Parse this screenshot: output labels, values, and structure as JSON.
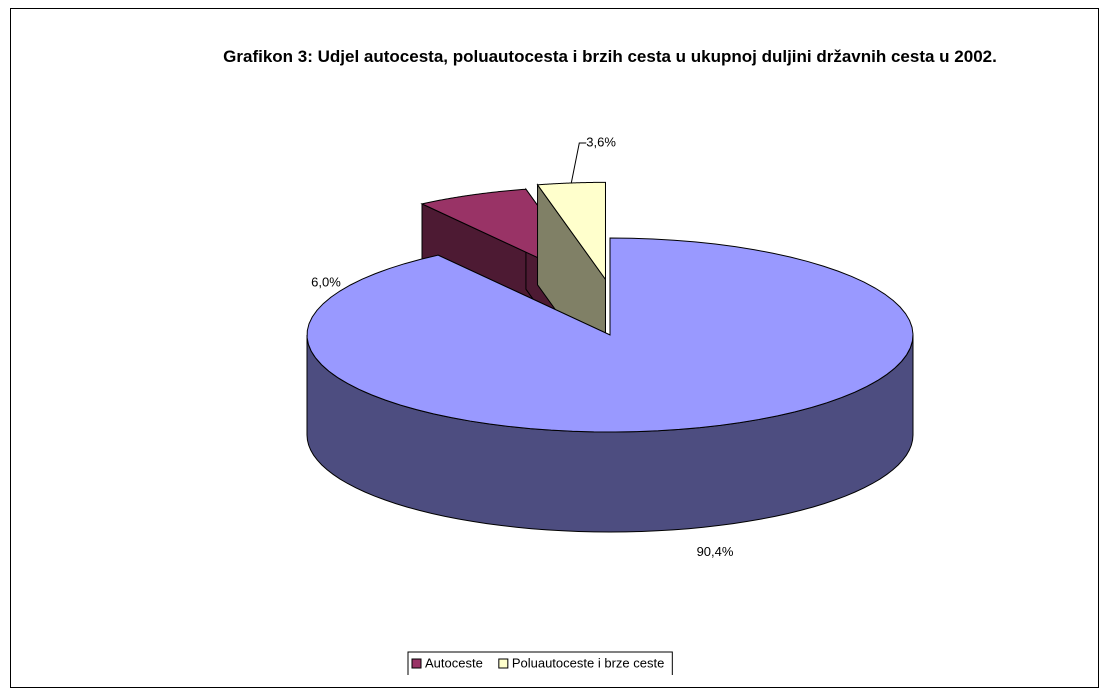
{
  "chart_data": {
    "type": "pie3d",
    "title": "Grafikon 3: Udjel autocesta, poluautocesta i brzih cesta u ukupnoj duljini državnih cesta u 2002.",
    "categories": [
      null,
      "Autoceste",
      "Poluautoceste i brze ceste"
    ],
    "values": [
      90.4,
      6.0,
      3.6
    ],
    "value_labels": [
      "90,4%",
      "6,0%",
      "3,6%"
    ],
    "colors": [
      "#9999ff",
      "#993366",
      "#ffffcc"
    ],
    "legend": "bottom"
  }
}
